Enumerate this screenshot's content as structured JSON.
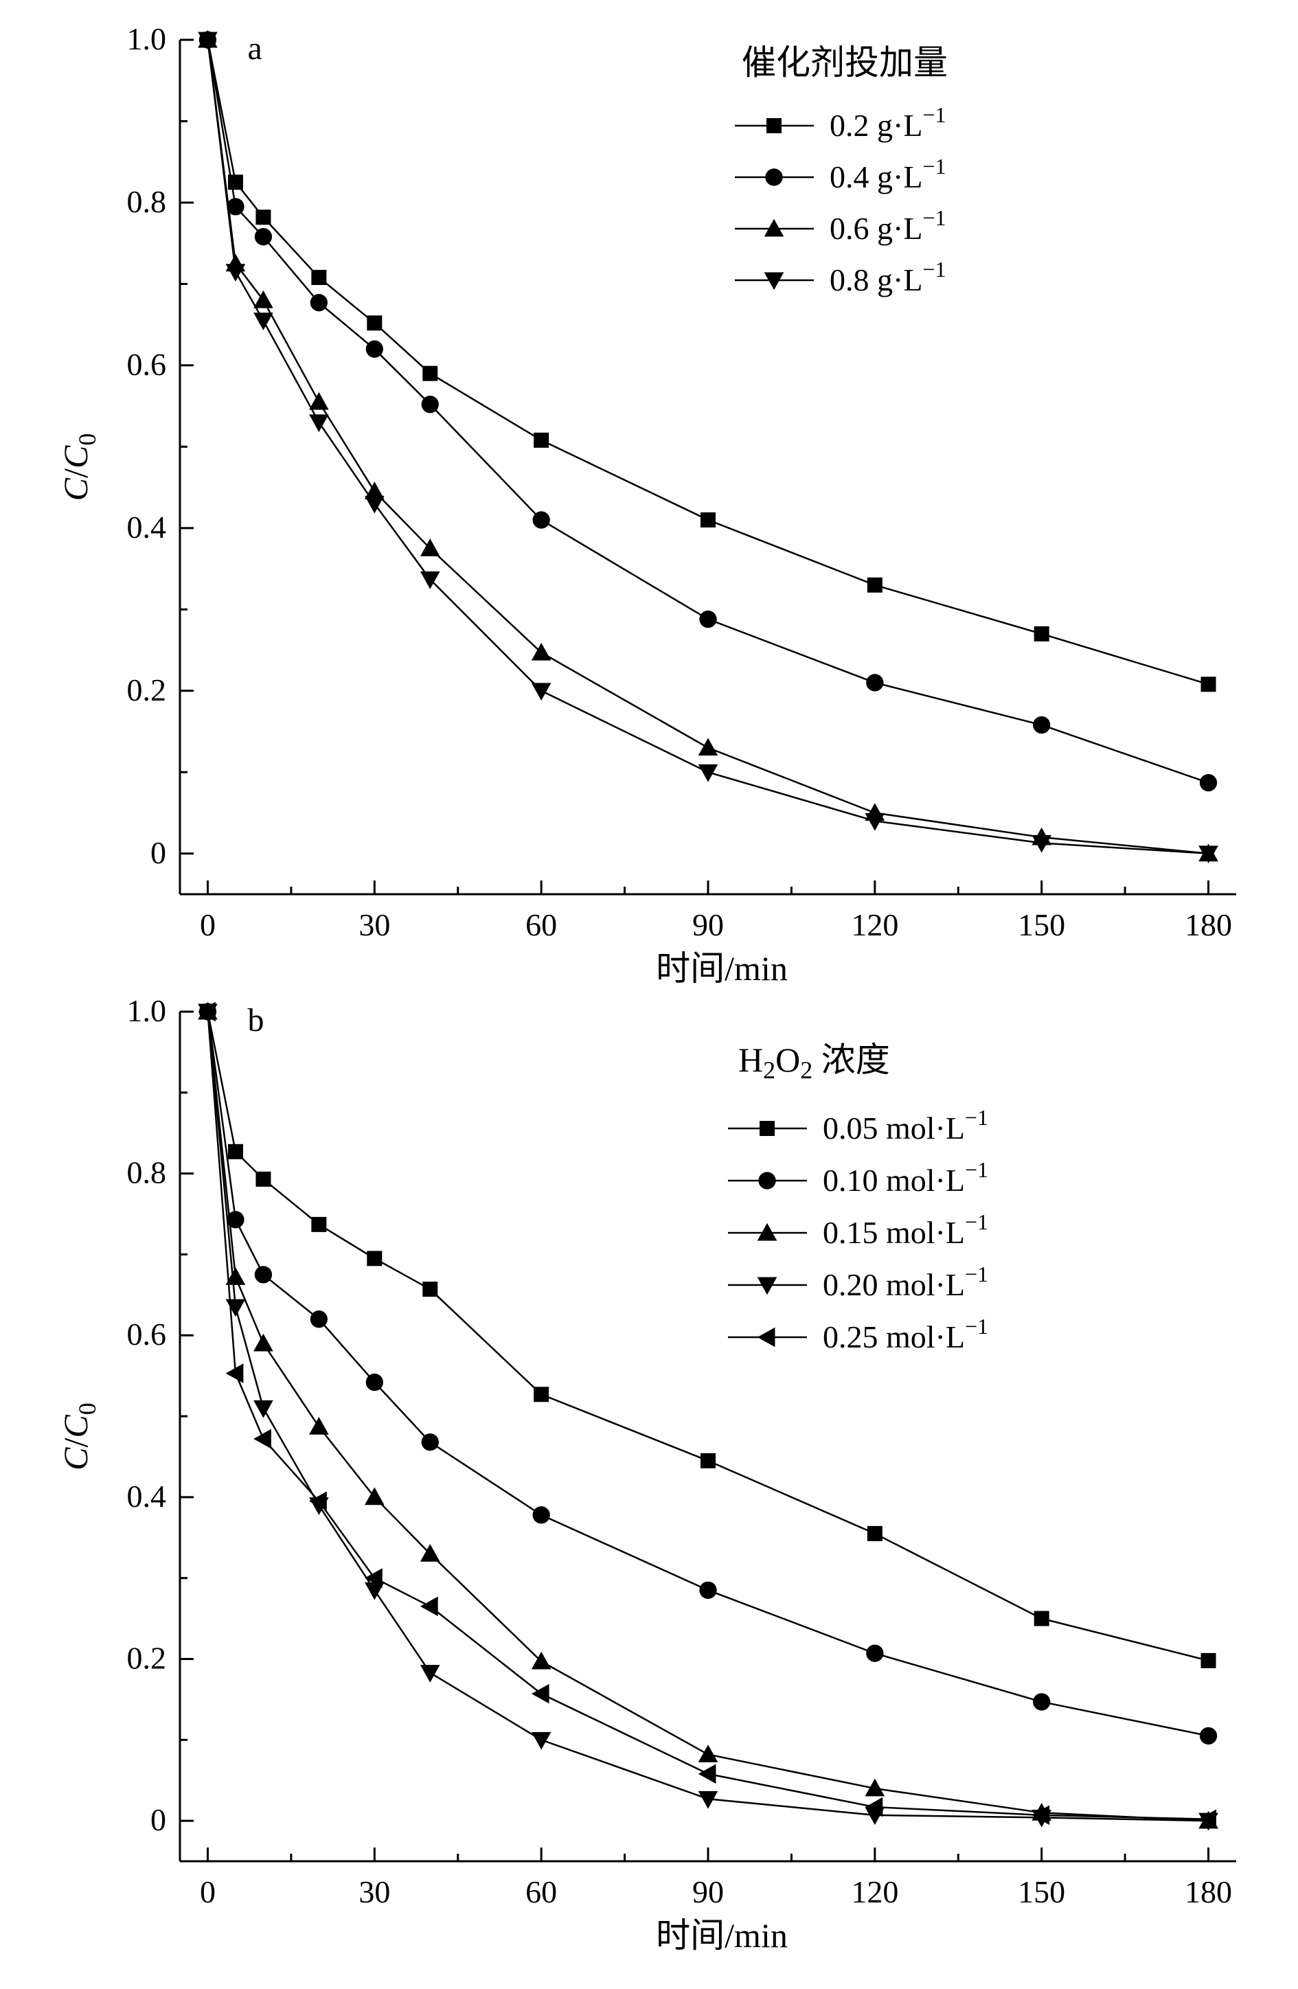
{
  "chart_data": [
    {
      "type": "line",
      "panel_label": "a",
      "x": [
        0,
        5,
        10,
        20,
        30,
        40,
        60,
        90,
        120,
        150,
        180
      ],
      "xlim": [
        -5,
        185
      ],
      "ylim": [
        -0.05,
        1.0
      ],
      "xticks": [
        "0",
        "30",
        "60",
        "90",
        "120",
        "150",
        "180"
      ],
      "yticks": [
        "0",
        "0.2",
        "0.4",
        "0.6",
        "0.8",
        "1.0"
      ],
      "xlabel": "时间/min",
      "ylabel": {
        "C": "C",
        "slash": "/",
        "C0": "C",
        "sub": "0"
      },
      "legend_title": "催化剂投加量",
      "legend_position": "top-right",
      "series": [
        {
          "name": "0.2 g·L",
          "sup": "−1",
          "marker": "square",
          "values": [
            1.0,
            0.825,
            0.782,
            0.708,
            0.652,
            0.59,
            0.508,
            0.41,
            0.33,
            0.27,
            0.208
          ]
        },
        {
          "name": "0.4 g·L",
          "sup": "−1",
          "marker": "circle",
          "values": [
            1.0,
            0.795,
            0.758,
            0.677,
            0.62,
            0.552,
            0.41,
            0.288,
            0.21,
            0.158,
            0.087
          ]
        },
        {
          "name": "0.6 g·L",
          "sup": "−1",
          "marker": "triangle-up",
          "values": [
            1.0,
            0.725,
            0.68,
            0.555,
            0.445,
            0.375,
            0.247,
            0.13,
            0.05,
            0.02,
            0.0
          ]
        },
        {
          "name": "0.8 g·L",
          "sup": "−1",
          "marker": "triangle-down",
          "values": [
            1.0,
            0.715,
            0.655,
            0.53,
            0.43,
            0.337,
            0.2,
            0.1,
            0.04,
            0.013,
            0.0
          ]
        }
      ]
    },
    {
      "type": "line",
      "panel_label": "b",
      "x": [
        0,
        5,
        10,
        20,
        30,
        40,
        60,
        90,
        120,
        150,
        180
      ],
      "xlim": [
        -5,
        185
      ],
      "ylim": [
        -0.05,
        1.0
      ],
      "xticks": [
        "0",
        "30",
        "60",
        "90",
        "120",
        "150",
        "180"
      ],
      "yticks": [
        "0",
        "0.2",
        "0.4",
        "0.6",
        "0.8",
        "1.0"
      ],
      "xlabel": "时间/min",
      "ylabel": {
        "C": "C",
        "slash": "/",
        "C0": "C",
        "sub": "0"
      },
      "legend_title": {
        "h": "H",
        "sub1": "2",
        "o": "O",
        "sub2": "2",
        "rest": " 浓度"
      },
      "legend_position": "top-right",
      "series": [
        {
          "name": "0.05 mol·L",
          "sup": "−1",
          "marker": "square",
          "values": [
            1.0,
            0.827,
            0.793,
            0.737,
            0.695,
            0.657,
            0.527,
            0.445,
            0.355,
            0.25,
            0.198
          ]
        },
        {
          "name": "0.10 mol·L",
          "sup": "−1",
          "marker": "circle",
          "values": [
            1.0,
            0.743,
            0.675,
            0.62,
            0.542,
            0.468,
            0.378,
            0.285,
            0.207,
            0.147,
            0.105
          ]
        },
        {
          "name": "0.15 mol·L",
          "sup": "−1",
          "marker": "triangle-up",
          "values": [
            1.0,
            0.672,
            0.59,
            0.487,
            0.4,
            0.33,
            0.197,
            0.082,
            0.04,
            0.01,
            0.0
          ]
        },
        {
          "name": "0.20 mol·L",
          "sup": "−1",
          "marker": "triangle-down",
          "values": [
            1.0,
            0.635,
            0.51,
            0.39,
            0.285,
            0.183,
            0.1,
            0.027,
            0.007,
            0.004,
            0.0
          ]
        },
        {
          "name": "0.25 mol·L",
          "sup": "−1",
          "marker": "triangle-left",
          "values": [
            1.0,
            0.553,
            0.472,
            0.395,
            0.3,
            0.265,
            0.157,
            0.058,
            0.017,
            0.007,
            0.002
          ]
        }
      ]
    }
  ]
}
